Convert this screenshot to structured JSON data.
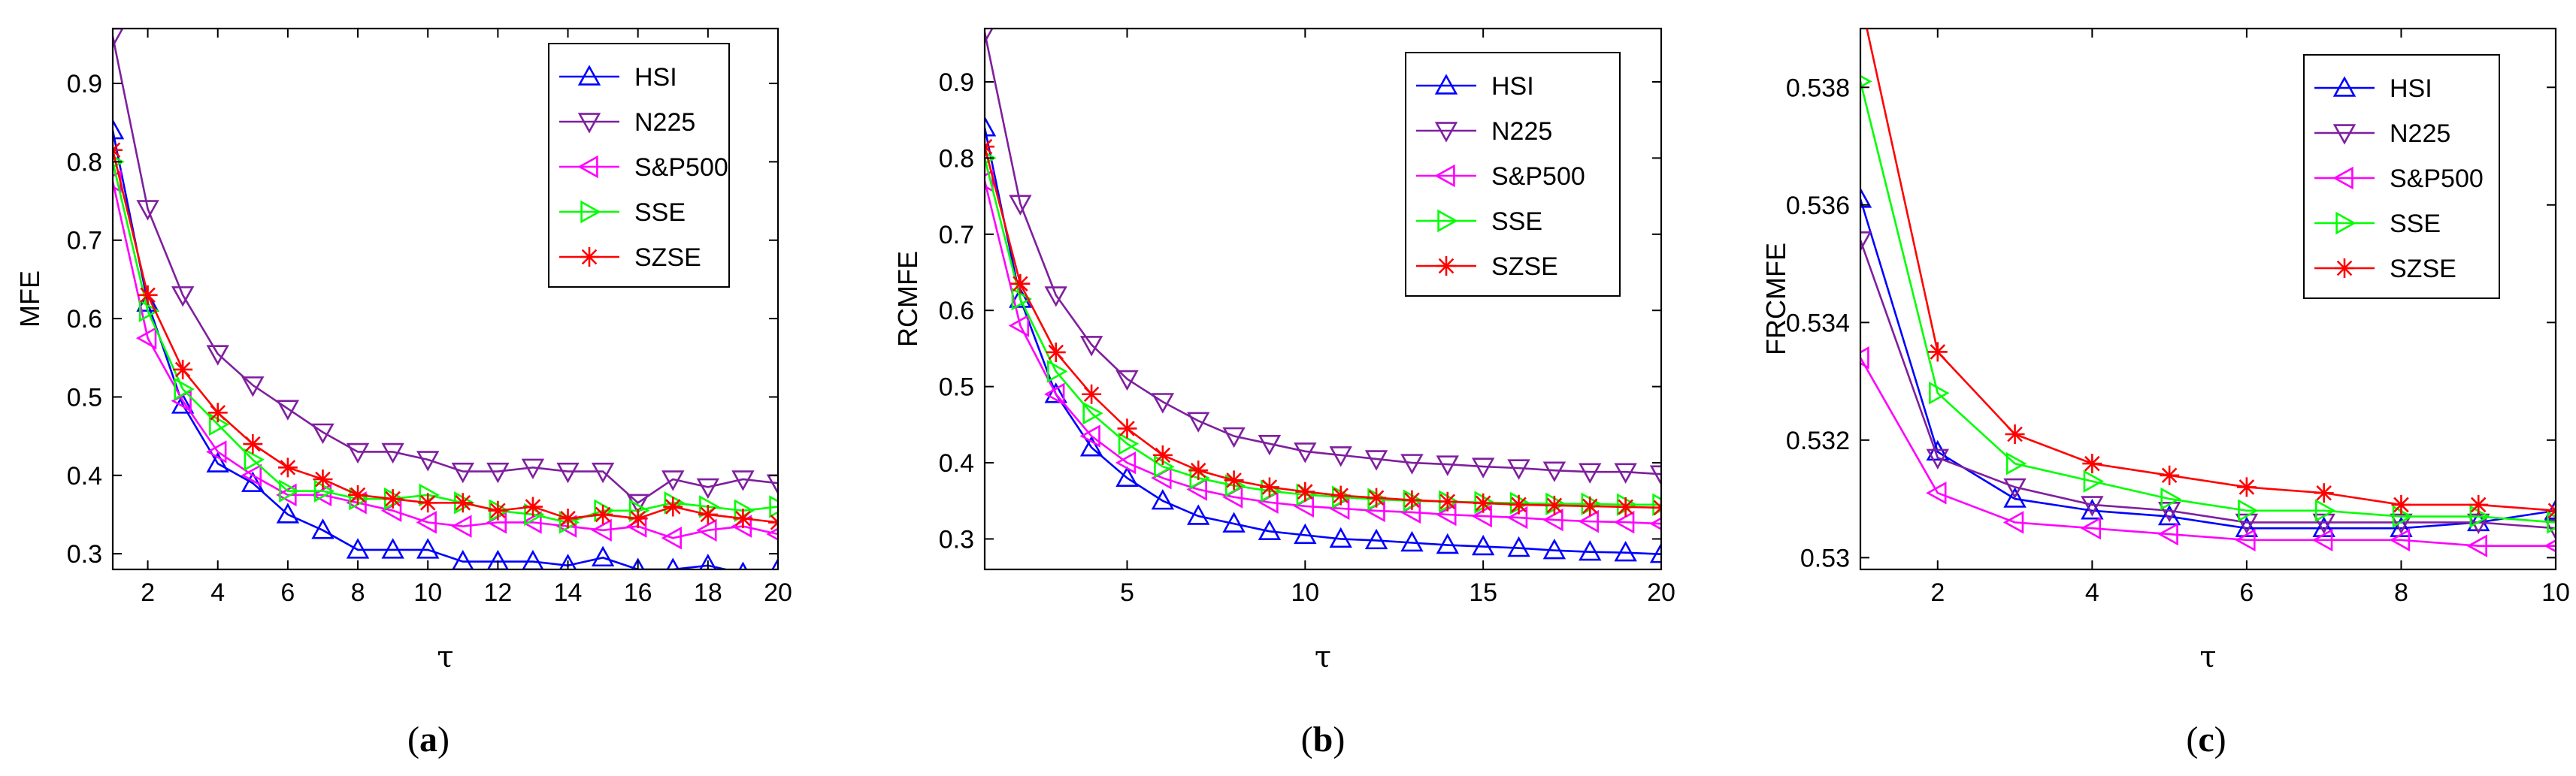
{
  "figure": {
    "captions": [
      "(a)",
      "(b)",
      "(c)"
    ],
    "captions_bold": [
      "a",
      "b",
      "c"
    ]
  },
  "chart_data": [
    {
      "type": "line",
      "panel": "(a)",
      "title": "",
      "xlabel": "τ",
      "ylabel": "MFE",
      "xlim": [
        1,
        20
      ],
      "ylim": [
        0.28,
        0.97
      ],
      "xticks": [
        2,
        4,
        6,
        8,
        10,
        12,
        14,
        16,
        18,
        20
      ],
      "yticks": [
        0.3,
        0.4,
        0.5,
        0.6,
        0.7,
        0.8,
        0.9
      ],
      "ytick_labels": [
        "0.3",
        "0.4",
        "0.5",
        "0.6",
        "0.7",
        "0.8",
        "0.9"
      ],
      "legend_position": "top-right",
      "grid": false,
      "x": [
        1,
        2,
        3,
        4,
        5,
        6,
        7,
        8,
        9,
        10,
        11,
        12,
        13,
        14,
        15,
        16,
        17,
        18,
        19,
        20
      ],
      "series": [
        {
          "name": "HSI",
          "color": "#0000ff",
          "marker": "triangle-up",
          "values": [
            0.84,
            0.62,
            0.49,
            0.415,
            0.39,
            0.35,
            0.33,
            0.305,
            0.305,
            0.305,
            0.29,
            0.29,
            0.29,
            0.285,
            0.295,
            0.28,
            0.28,
            0.285,
            0.275,
            0.28
          ]
        },
        {
          "name": "N225",
          "color": "#7f1f9f",
          "marker": "triangle-down",
          "values": [
            0.96,
            0.74,
            0.63,
            0.555,
            0.515,
            0.485,
            0.455,
            0.43,
            0.43,
            0.42,
            0.405,
            0.405,
            0.41,
            0.405,
            0.405,
            0.365,
            0.395,
            0.385,
            0.395,
            0.39
          ]
        },
        {
          "name": "S&P500",
          "color": "#ff00ff",
          "marker": "triangle-left",
          "values": [
            0.775,
            0.575,
            0.495,
            0.43,
            0.4,
            0.375,
            0.375,
            0.365,
            0.355,
            0.34,
            0.335,
            0.34,
            0.34,
            0.335,
            0.33,
            0.335,
            0.32,
            0.33,
            0.335,
            0.325
          ]
        },
        {
          "name": "SSE",
          "color": "#00ff00",
          "marker": "triangle-right",
          "values": [
            0.8,
            0.61,
            0.51,
            0.465,
            0.42,
            0.38,
            0.38,
            0.37,
            0.37,
            0.375,
            0.365,
            0.355,
            0.35,
            0.34,
            0.355,
            0.355,
            0.365,
            0.36,
            0.355,
            0.36
          ]
        },
        {
          "name": "SZSE",
          "color": "#ff0000",
          "marker": "star",
          "values": [
            0.815,
            0.63,
            0.535,
            0.48,
            0.44,
            0.41,
            0.395,
            0.375,
            0.37,
            0.365,
            0.365,
            0.355,
            0.36,
            0.345,
            0.35,
            0.345,
            0.36,
            0.35,
            0.345,
            0.34
          ]
        }
      ]
    },
    {
      "type": "line",
      "panel": "(b)",
      "title": "",
      "xlabel": "τ",
      "ylabel": "RCMFE",
      "xlim": [
        1,
        20
      ],
      "ylim": [
        0.26,
        0.97
      ],
      "xticks": [
        5,
        10,
        15,
        20
      ],
      "yticks": [
        0.3,
        0.4,
        0.5,
        0.6,
        0.7,
        0.8,
        0.9
      ],
      "ytick_labels": [
        "0.3",
        "0.4",
        "0.5",
        "0.6",
        "0.7",
        "0.8",
        "0.9"
      ],
      "legend_position": "top-right",
      "grid": false,
      "x": [
        1,
        2,
        3,
        4,
        5,
        6,
        7,
        8,
        9,
        10,
        11,
        12,
        13,
        14,
        15,
        16,
        17,
        18,
        19,
        20
      ],
      "series": [
        {
          "name": "HSI",
          "color": "#0000ff",
          "marker": "triangle-up",
          "values": [
            0.84,
            0.615,
            0.49,
            0.42,
            0.38,
            0.35,
            0.33,
            0.32,
            0.31,
            0.305,
            0.3,
            0.298,
            0.295,
            0.292,
            0.29,
            0.288,
            0.285,
            0.283,
            0.282,
            0.28
          ]
        },
        {
          "name": "N225",
          "color": "#7f1f9f",
          "marker": "triangle-down",
          "values": [
            0.965,
            0.74,
            0.62,
            0.555,
            0.51,
            0.48,
            0.455,
            0.435,
            0.425,
            0.415,
            0.41,
            0.405,
            0.4,
            0.398,
            0.395,
            0.393,
            0.39,
            0.388,
            0.388,
            0.385
          ]
        },
        {
          "name": "S&P500",
          "color": "#ff00ff",
          "marker": "triangle-left",
          "values": [
            0.77,
            0.58,
            0.49,
            0.435,
            0.4,
            0.38,
            0.365,
            0.355,
            0.348,
            0.343,
            0.34,
            0.337,
            0.335,
            0.332,
            0.33,
            0.328,
            0.325,
            0.323,
            0.322,
            0.32
          ]
        },
        {
          "name": "SSE",
          "color": "#00ff00",
          "marker": "triangle-right",
          "values": [
            0.8,
            0.615,
            0.52,
            0.465,
            0.425,
            0.395,
            0.38,
            0.37,
            0.363,
            0.358,
            0.355,
            0.352,
            0.35,
            0.349,
            0.348,
            0.347,
            0.346,
            0.346,
            0.345,
            0.345
          ]
        },
        {
          "name": "SZSE",
          "color": "#ff0000",
          "marker": "star",
          "values": [
            0.815,
            0.635,
            0.545,
            0.49,
            0.445,
            0.41,
            0.39,
            0.377,
            0.368,
            0.362,
            0.357,
            0.354,
            0.351,
            0.349,
            0.347,
            0.345,
            0.344,
            0.343,
            0.342,
            0.341
          ]
        }
      ]
    },
    {
      "type": "line",
      "panel": "(c)",
      "title": "",
      "xlabel": "τ",
      "ylabel": "FRCMFE",
      "xlim": [
        1,
        10
      ],
      "ylim": [
        0.5298,
        0.539
      ],
      "xticks": [
        2,
        4,
        6,
        8,
        10
      ],
      "yticks": [
        0.53,
        0.532,
        0.534,
        0.536,
        0.538
      ],
      "ytick_labels": [
        "0.53",
        "0.532",
        "0.534",
        "0.536",
        "0.538"
      ],
      "legend_position": "top-right",
      "grid": false,
      "x": [
        1,
        2,
        3,
        4,
        5,
        6,
        7,
        8,
        9,
        10
      ],
      "series": [
        {
          "name": "HSI",
          "color": "#0000ff",
          "marker": "triangle-up",
          "values": [
            0.5361,
            0.5318,
            0.531,
            0.5308,
            0.5307,
            0.5305,
            0.5305,
            0.5305,
            0.5306,
            0.5308
          ]
        },
        {
          "name": "N225",
          "color": "#7f1f9f",
          "marker": "triangle-down",
          "values": [
            0.5354,
            0.5317,
            0.5312,
            0.5309,
            0.5308,
            0.5306,
            0.5306,
            0.5306,
            0.5306,
            0.5305
          ]
        },
        {
          "name": "S&P500",
          "color": "#ff00ff",
          "marker": "triangle-left",
          "values": [
            0.5334,
            0.5311,
            0.5306,
            0.5305,
            0.5304,
            0.5303,
            0.5303,
            0.5303,
            0.5302,
            0.5302
          ]
        },
        {
          "name": "SSE",
          "color": "#00ff00",
          "marker": "triangle-right",
          "values": [
            0.5381,
            0.5328,
            0.5316,
            0.5313,
            0.531,
            0.5308,
            0.5308,
            0.5307,
            0.5307,
            0.5306
          ]
        },
        {
          "name": "SZSE",
          "color": "#ff0000",
          "marker": "star",
          "values": [
            0.5395,
            0.5335,
            0.5321,
            0.5316,
            0.5314,
            0.5312,
            0.5311,
            0.5309,
            0.5309,
            0.5308
          ]
        }
      ]
    }
  ]
}
